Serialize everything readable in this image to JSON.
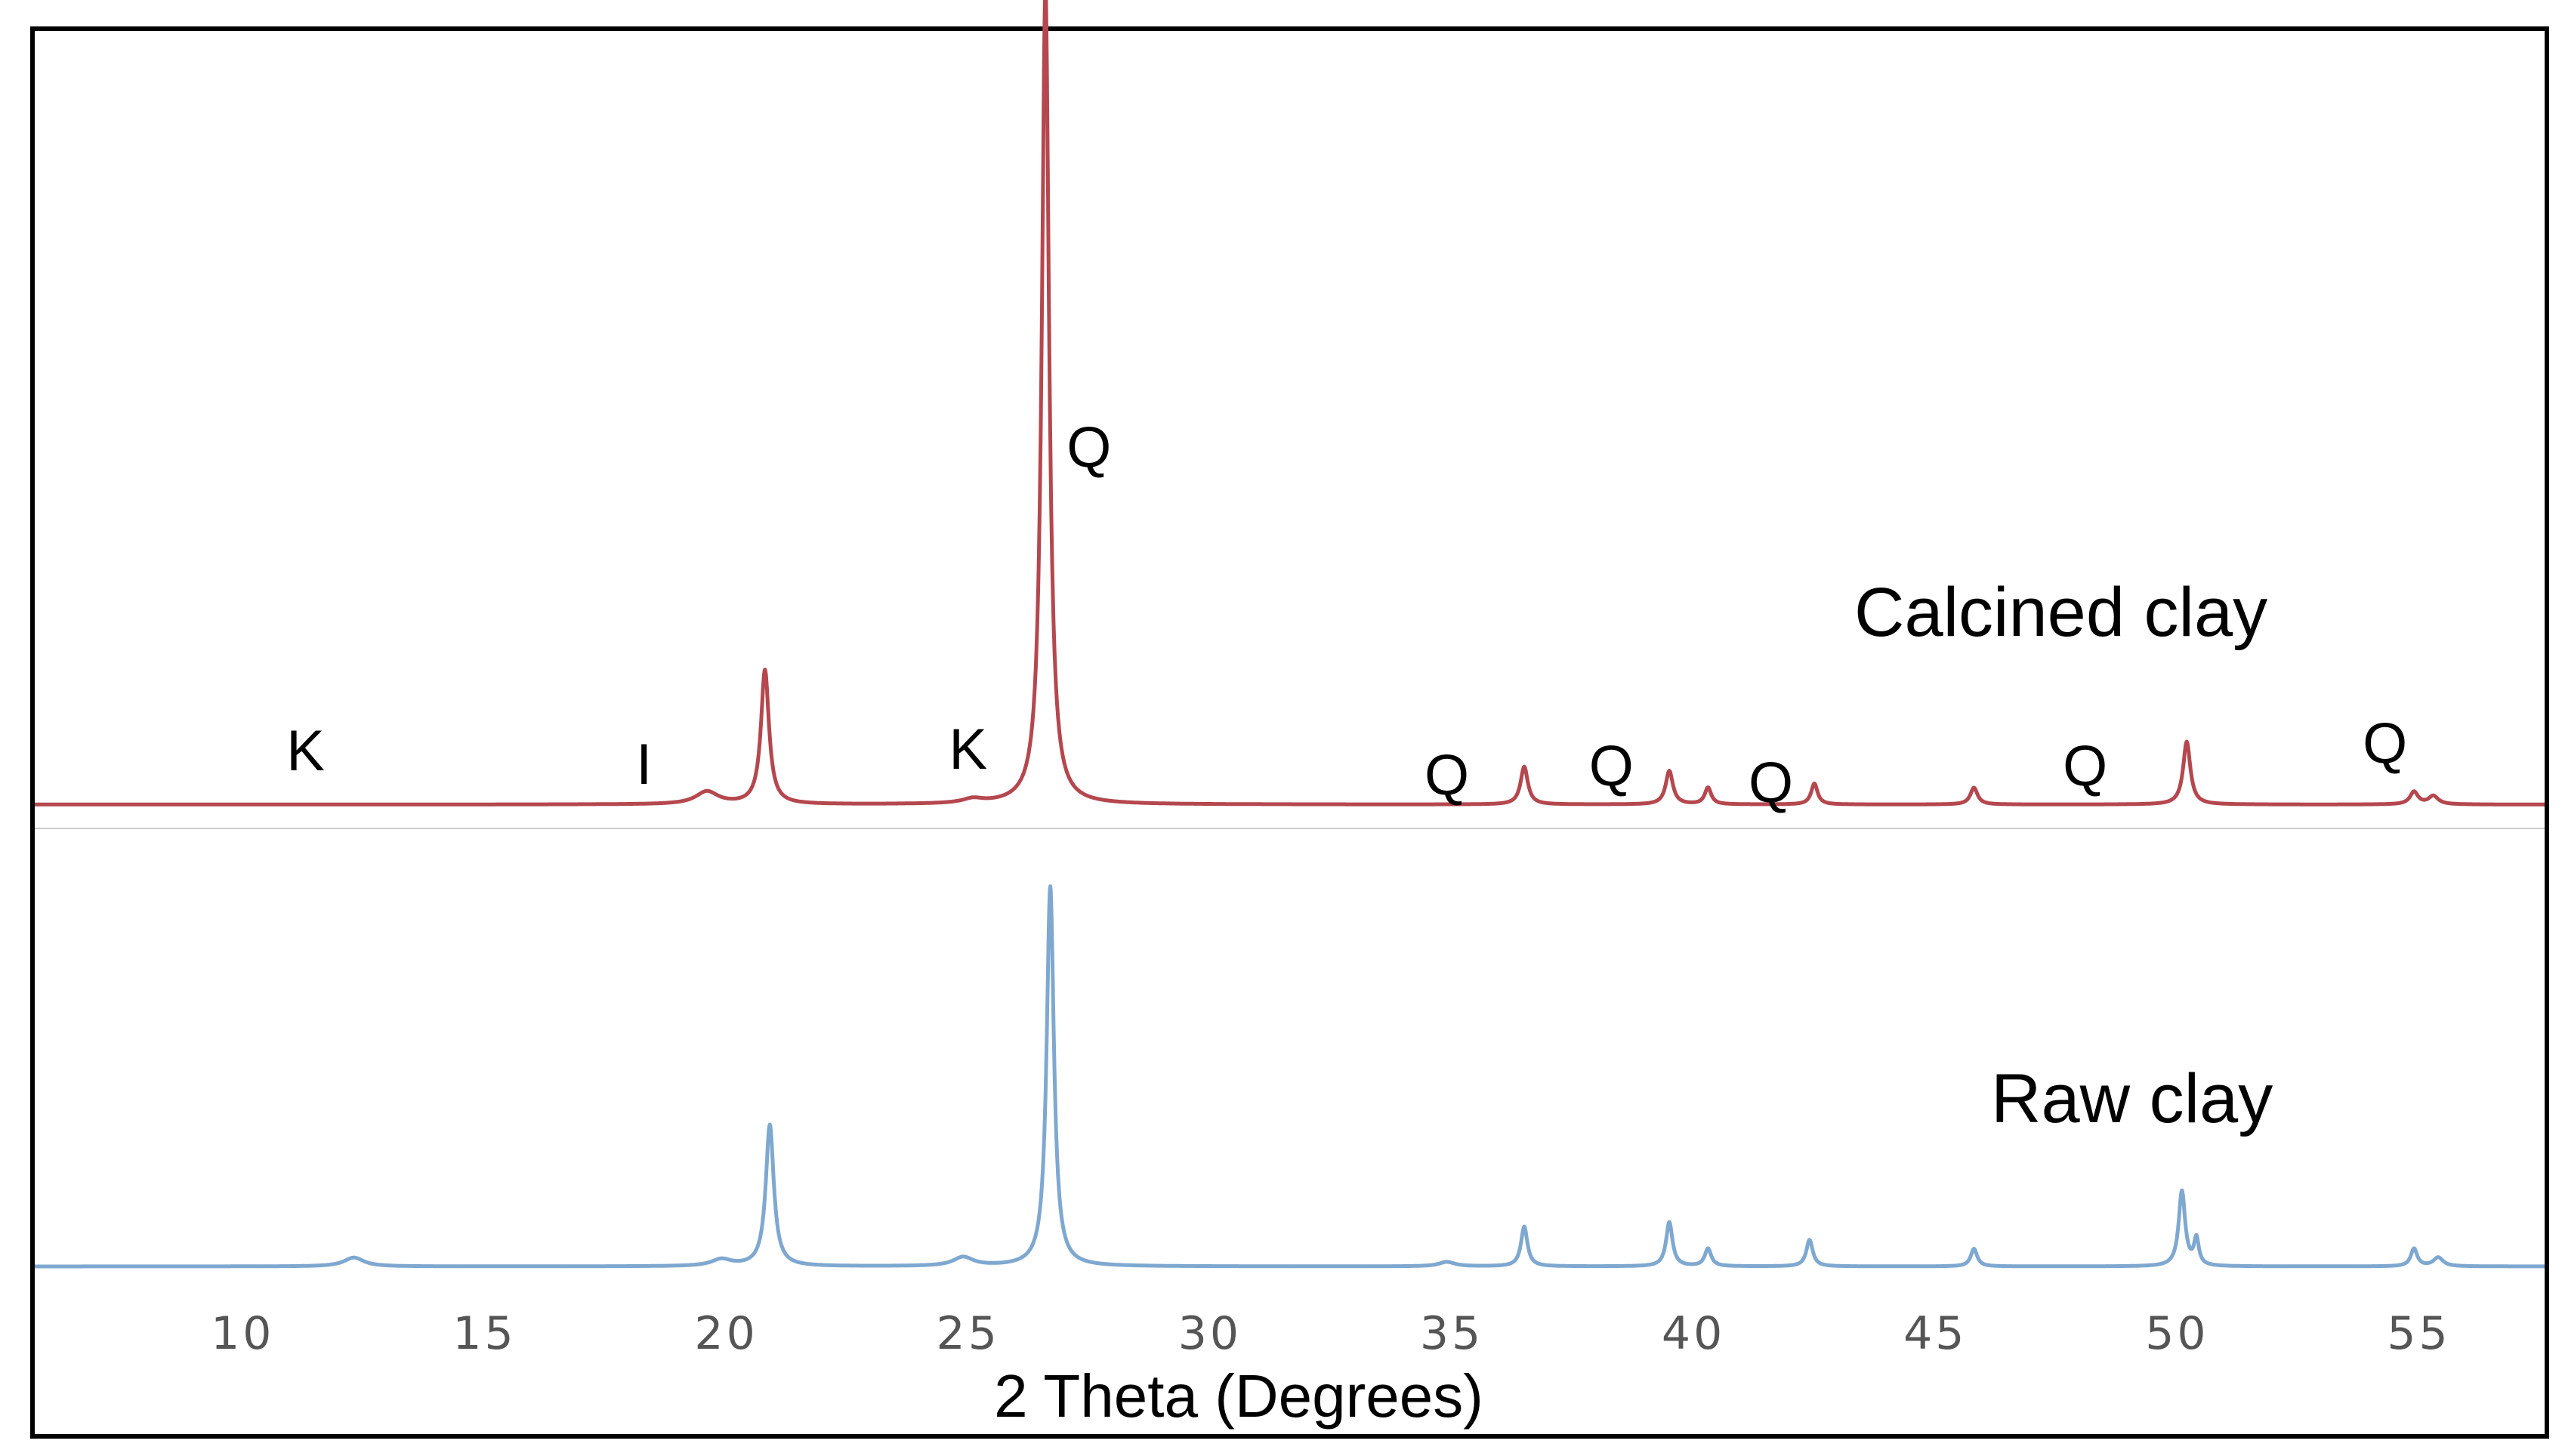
{
  "chart_data": {
    "type": "line",
    "xlabel": "2 Theta (Degrees)",
    "ylabel": "",
    "xlim": [
      5.7,
      57.6
    ],
    "xticks": [
      10,
      15,
      20,
      25,
      30,
      35,
      40,
      45,
      50,
      55
    ],
    "grid": false,
    "legend": "none",
    "series": [
      {
        "name": "Calcined clay",
        "color": "#b5474e",
        "baseline": 0.03,
        "peaks": [
          {
            "x": 19.6,
            "h": 0.03,
            "w": 0.28
          },
          {
            "x": 20.8,
            "h": 0.32,
            "w": 0.1
          },
          {
            "x": 25.1,
            "h": 0.01,
            "w": 0.25
          },
          {
            "x": 26.6,
            "h": 1.95,
            "w": 0.09
          },
          {
            "x": 36.5,
            "h": 0.09,
            "w": 0.09
          },
          {
            "x": 39.5,
            "h": 0.08,
            "w": 0.09
          },
          {
            "x": 40.3,
            "h": 0.04,
            "w": 0.08
          },
          {
            "x": 42.5,
            "h": 0.05,
            "w": 0.08
          },
          {
            "x": 45.8,
            "h": 0.04,
            "w": 0.09
          },
          {
            "x": 50.2,
            "h": 0.15,
            "w": 0.09
          },
          {
            "x": 54.9,
            "h": 0.03,
            "w": 0.1
          },
          {
            "x": 55.3,
            "h": 0.02,
            "w": 0.12
          }
        ]
      },
      {
        "name": "Raw clay",
        "color": "#7fa8d0",
        "baseline": 0.0,
        "peaks": [
          {
            "x": 12.3,
            "h": 0.02,
            "w": 0.25
          },
          {
            "x": 19.9,
            "h": 0.015,
            "w": 0.25
          },
          {
            "x": 20.9,
            "h": 0.32,
            "w": 0.1
          },
          {
            "x": 24.9,
            "h": 0.02,
            "w": 0.25
          },
          {
            "x": 26.7,
            "h": 0.86,
            "w": 0.09
          },
          {
            "x": 34.9,
            "h": 0.01,
            "w": 0.2
          },
          {
            "x": 36.5,
            "h": 0.09,
            "w": 0.08
          },
          {
            "x": 39.5,
            "h": 0.1,
            "w": 0.08
          },
          {
            "x": 40.3,
            "h": 0.04,
            "w": 0.08
          },
          {
            "x": 42.4,
            "h": 0.06,
            "w": 0.08
          },
          {
            "x": 45.8,
            "h": 0.04,
            "w": 0.08
          },
          {
            "x": 50.1,
            "h": 0.17,
            "w": 0.08
          },
          {
            "x": 50.4,
            "h": 0.06,
            "w": 0.06
          },
          {
            "x": 54.9,
            "h": 0.04,
            "w": 0.08
          },
          {
            "x": 55.4,
            "h": 0.02,
            "w": 0.12
          }
        ]
      }
    ],
    "annotations": [
      {
        "text": "K",
        "x": 11.3
      },
      {
        "text": "I",
        "x": 18.3
      },
      {
        "text": "K",
        "x": 25.0
      },
      {
        "text": "Q",
        "x": 27.5
      },
      {
        "text": "Q",
        "x": 34.9
      },
      {
        "text": "Q",
        "x": 38.3
      },
      {
        "text": "Q",
        "x": 41.6
      },
      {
        "text": "Q",
        "x": 48.1
      },
      {
        "text": "Q",
        "x": 54.3
      }
    ],
    "series_labels": [
      "Calcined clay",
      "Raw clay"
    ]
  }
}
